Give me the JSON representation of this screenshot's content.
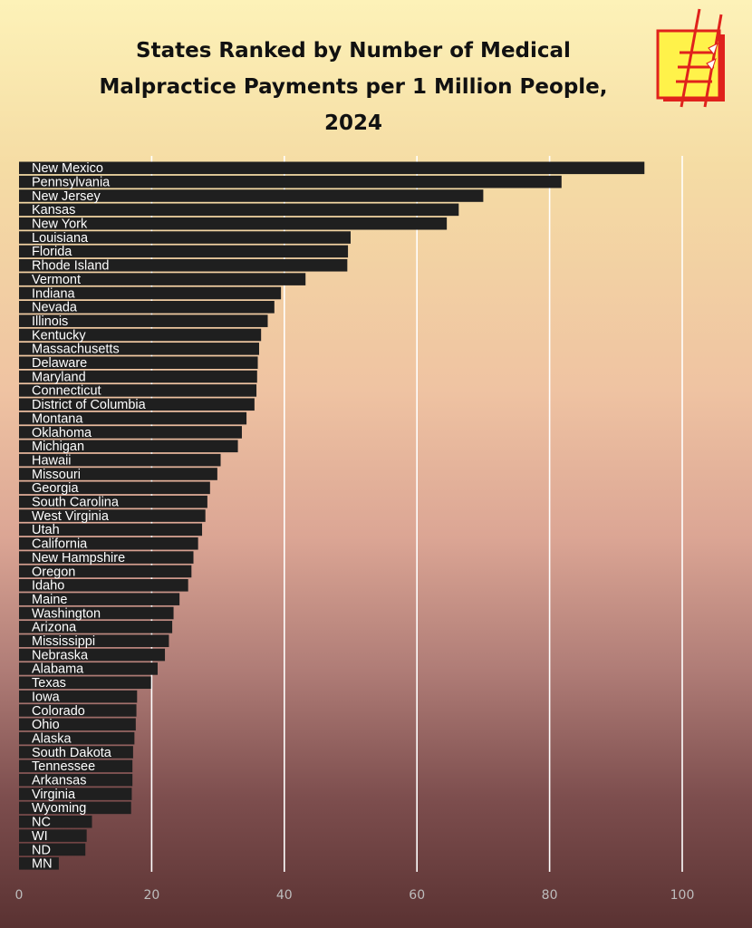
{
  "title_lines": [
    "States Ranked by Number of Medical",
    "Malpractice Payments per 1 Million People,",
    "2024"
  ],
  "colors": {
    "bar": "#1f1f1f",
    "grid": "#ffffff",
    "logo_yellow": "#fff24a",
    "logo_red": "#e0221c"
  },
  "logo": {
    "icon": "ladder-logo-icon"
  },
  "chart_data": {
    "type": "bar",
    "orientation": "horizontal",
    "title": "States Ranked by Number of Medical Malpractice Payments per 1 Million People, 2024",
    "xlabel": "",
    "ylabel": "",
    "xlim": [
      0,
      100
    ],
    "xticks": [
      0,
      20,
      40,
      60,
      80,
      100
    ],
    "grid": "vertical",
    "categories": [
      "New Mexico",
      "Pennsylvania",
      "New Jersey",
      "Kansas",
      "New York",
      "Louisiana",
      "Florida",
      "Rhode Island",
      "Vermont",
      "Indiana",
      "Nevada",
      "Illinois",
      "Kentucky",
      "Massachusetts",
      "Delaware",
      "Maryland",
      "Connecticut",
      "District of Columbia",
      "Montana",
      "Oklahoma",
      "Michigan",
      "Hawaii",
      "Missouri",
      "Georgia",
      "South Carolina",
      "West Virginia",
      "Utah",
      "California",
      "New Hampshire",
      "Oregon",
      "Idaho",
      "Maine",
      "Washington",
      "Arizona",
      "Mississippi",
      "Nebraska",
      "Alabama",
      "Texas",
      "Iowa",
      "Colorado",
      "Ohio",
      "Alaska",
      "South Dakota",
      "Tennessee",
      "Arkansas",
      "Virginia",
      "Wyoming",
      "NC",
      "WI",
      "ND",
      "MN"
    ],
    "values": [
      94.3,
      81.8,
      70.0,
      66.3,
      64.5,
      50.0,
      49.6,
      49.5,
      43.2,
      39.5,
      38.5,
      37.5,
      36.5,
      36.2,
      36.0,
      35.9,
      35.8,
      35.5,
      34.3,
      33.6,
      33.0,
      30.4,
      29.9,
      28.8,
      28.4,
      28.1,
      27.6,
      27.0,
      26.3,
      26.0,
      25.5,
      24.2,
      23.3,
      23.1,
      22.6,
      22.0,
      20.9,
      19.9,
      17.8,
      17.7,
      17.6,
      17.4,
      17.2,
      17.1,
      17.1,
      17.0,
      16.9,
      11.0,
      10.2,
      10.0,
      6.0
    ]
  }
}
